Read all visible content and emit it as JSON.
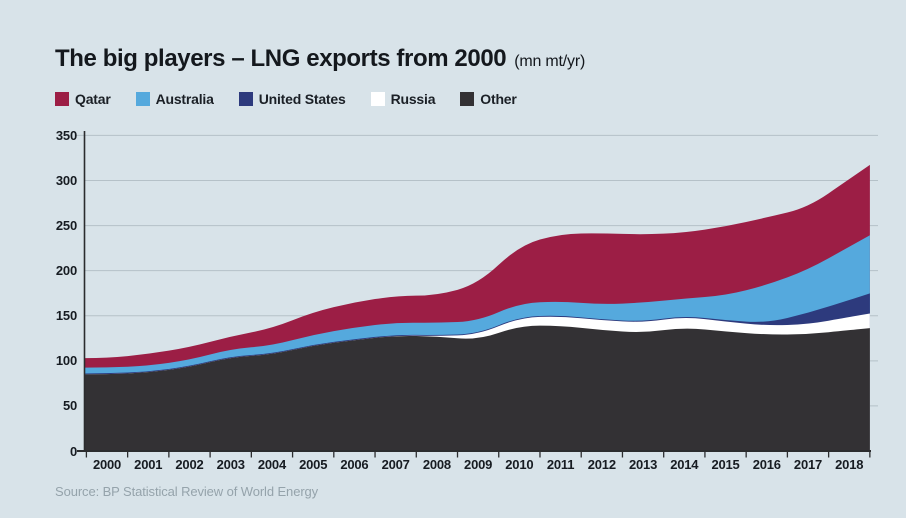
{
  "title": {
    "main": "The big players – LNG exports from 2000",
    "unit": "(mn mt/yr)"
  },
  "legend": [
    {
      "label": "Qatar",
      "color": "#9c1e45"
    },
    {
      "label": "Australia",
      "color": "#55a9dd"
    },
    {
      "label": "United States",
      "color": "#2d3a7d"
    },
    {
      "label": "Russia",
      "color": "#ffffff"
    },
    {
      "label": "Other",
      "color": "#333134"
    }
  ],
  "source": "Source: BP Statistical Review of World Energy",
  "colors": {
    "background": "#d8e3e9",
    "gridline": "#b5c1c8",
    "axis": "#2b2c2e",
    "tick_label": "#171c22",
    "source_text": "#95a3ab"
  },
  "chart_data": {
    "type": "area",
    "stacked": true,
    "title": "The big players – LNG exports from 2000",
    "unit": "mn mt/yr",
    "xlabel": "",
    "ylabel": "",
    "grid": "horizontal",
    "legend_position": "top",
    "ylim": [
      0,
      350
    ],
    "yticks": [
      0,
      50,
      100,
      150,
      200,
      250,
      300,
      350
    ],
    "x": [
      2000,
      2001,
      2002,
      2003,
      2004,
      2005,
      2006,
      2007,
      2008,
      2009,
      2010,
      2011,
      2012,
      2013,
      2014,
      2015,
      2016,
      2017,
      2018
    ],
    "series": [
      {
        "name": "Qatar",
        "color": "#9c1e45",
        "values": [
          10.5,
          13,
          14,
          14,
          19,
          25,
          28,
          29.5,
          30.5,
          41,
          64,
          75,
          79,
          75.5,
          73,
          76.5,
          75,
          69,
          75
        ]
      },
      {
        "name": "Australia",
        "color": "#55a9dd",
        "values": [
          6.5,
          6.5,
          7,
          8,
          9,
          11,
          13,
          13.5,
          13.5,
          14,
          15,
          15.5,
          16.5,
          21,
          19,
          27.5,
          42,
          48,
          59
        ]
      },
      {
        "name": "United States",
        "color": "#2d3a7d",
        "values": [
          1,
          1,
          1,
          1,
          1,
          1,
          1,
          1,
          1,
          1,
          1,
          1,
          1,
          1,
          1,
          1.5,
          3,
          12.5,
          19
        ]
      },
      {
        "name": "Russia",
        "color": "#ffffff",
        "values": [
          0,
          0,
          0,
          0,
          0,
          0,
          0,
          0,
          0.5,
          6,
          9,
          10.5,
          11,
          11.5,
          12,
          11,
          10,
          11,
          14.5
        ]
      },
      {
        "name": "Other",
        "color": "#333134",
        "values": [
          85,
          87,
          93,
          104,
          107,
          117,
          123,
          128,
          127,
          123,
          139,
          139,
          134,
          131,
          137,
          132.5,
          129,
          129.5,
          134
        ]
      }
    ],
    "stack_order_bottom_to_top": [
      "Other",
      "Russia",
      "United States",
      "Australia",
      "Qatar"
    ]
  }
}
